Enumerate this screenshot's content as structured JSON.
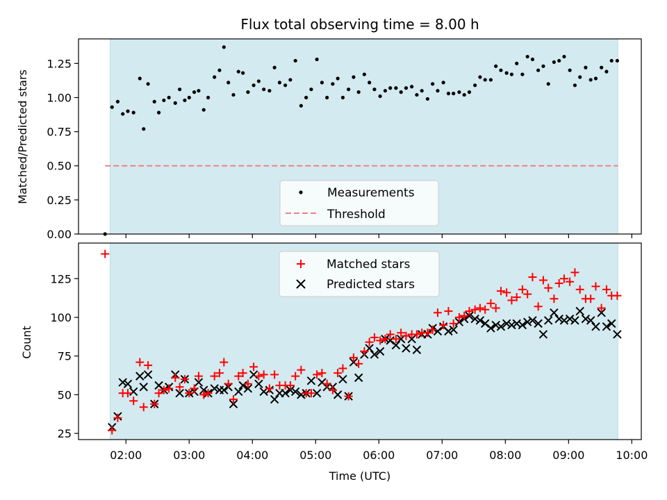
{
  "chart_data": [
    {
      "type": "scatter",
      "title": "Flux total observing time = 8.00 h",
      "xlabel": "",
      "ylabel": "Matched/Predicted stars",
      "xlim": [
        1.25,
        10.15
      ],
      "ylim": [
        0.0,
        1.43
      ],
      "yticks": [
        0.0,
        0.25,
        0.5,
        0.75,
        1.0,
        1.25
      ],
      "ytick_labels": [
        "0.00",
        "0.25",
        "0.50",
        "0.75",
        "1.00",
        "1.25"
      ],
      "xticks": [
        2,
        3,
        4,
        5,
        6,
        7,
        8,
        9,
        10
      ],
      "shaded_region": {
        "x_start": 1.75,
        "x_end": 9.78,
        "color": "#d3eaf0"
      },
      "threshold": {
        "name": "Threshold",
        "value": 0.5,
        "x_start": 1.67,
        "x_end": 9.78,
        "color": "#f08080"
      },
      "legend": {
        "position": "lower center",
        "entries": [
          "Measurements",
          "Threshold"
        ]
      },
      "series": [
        {
          "name": "Measurements",
          "marker": "dot",
          "color": "#000000",
          "x": [
            1.67,
            1.78,
            1.87,
            1.95,
            2.03,
            2.12,
            2.22,
            2.28,
            2.35,
            2.45,
            2.52,
            2.6,
            2.68,
            2.78,
            2.85,
            2.93,
            3.0,
            3.08,
            3.15,
            3.23,
            3.3,
            3.4,
            3.48,
            3.55,
            3.62,
            3.7,
            3.78,
            3.85,
            3.93,
            4.02,
            4.1,
            4.18,
            4.27,
            4.35,
            4.43,
            4.52,
            4.6,
            4.68,
            4.77,
            4.85,
            4.93,
            5.02,
            5.1,
            5.18,
            5.27,
            5.35,
            5.43,
            5.52,
            5.6,
            5.68,
            5.77,
            5.85,
            5.93,
            6.02,
            6.1,
            6.18,
            6.27,
            6.35,
            6.43,
            6.52,
            6.6,
            6.68,
            6.77,
            6.85,
            6.93,
            7.02,
            7.1,
            7.18,
            7.27,
            7.35,
            7.43,
            7.52,
            7.6,
            7.68,
            7.77,
            7.85,
            7.93,
            8.02,
            8.1,
            8.18,
            8.27,
            8.35,
            8.43,
            8.52,
            8.6,
            8.68,
            8.77,
            8.85,
            8.93,
            9.02,
            9.1,
            9.18,
            9.27,
            9.35,
            9.43,
            9.52,
            9.6,
            9.68,
            9.77
          ],
          "y": [
            0.0,
            0.93,
            0.97,
            0.88,
            0.9,
            0.89,
            1.14,
            0.77,
            1.1,
            0.97,
            0.89,
            0.98,
            1.0,
            0.96,
            1.06,
            0.98,
            1.0,
            1.04,
            1.05,
            0.91,
            1.0,
            1.15,
            1.2,
            1.37,
            1.11,
            1.02,
            1.19,
            1.18,
            1.04,
            1.09,
            1.12,
            1.06,
            1.05,
            1.22,
            1.11,
            1.09,
            1.13,
            1.27,
            0.94,
            1.0,
            1.06,
            1.28,
            1.11,
            1.0,
            1.1,
            1.14,
            1.0,
            1.06,
            1.15,
            1.04,
            1.17,
            1.11,
            1.06,
            1.01,
            1.05,
            1.07,
            1.07,
            1.04,
            1.07,
            1.08,
            1.02,
            1.05,
            0.99,
            1.1,
            1.05,
            1.11,
            1.03,
            1.03,
            1.04,
            1.02,
            1.04,
            1.09,
            1.15,
            1.13,
            1.13,
            1.23,
            1.2,
            1.18,
            1.17,
            1.25,
            1.17,
            1.3,
            1.28,
            1.2,
            1.23,
            1.1,
            1.26,
            1.27,
            1.3,
            1.2,
            1.09,
            1.15,
            1.22,
            1.13,
            1.14,
            1.22,
            1.19,
            1.27,
            1.27
          ]
        }
      ]
    },
    {
      "type": "scatter",
      "title": "",
      "xlabel": "Time (UTC)",
      "ylabel": "Count",
      "xlim": [
        1.25,
        10.15
      ],
      "ylim": [
        21,
        148
      ],
      "yticks": [
        25,
        50,
        75,
        100,
        125
      ],
      "ytick_labels": [
        "25",
        "50",
        "75",
        "100",
        "125"
      ],
      "xticks": [
        2,
        3,
        4,
        5,
        6,
        7,
        8,
        9,
        10
      ],
      "xtick_labels": [
        "02:00",
        "03:00",
        "04:00",
        "05:00",
        "06:00",
        "07:00",
        "08:00",
        "09:00",
        "10:00"
      ],
      "shaded_region": {
        "x_start": 1.75,
        "x_end": 9.78,
        "color": "#d3eaf0"
      },
      "legend": {
        "position": "upper center",
        "entries": [
          "Matched stars",
          "Predicted stars"
        ]
      },
      "series": [
        {
          "name": "Matched stars",
          "marker": "plus",
          "color": "#ff0000",
          "x": [
            1.67,
            1.78,
            1.87,
            1.95,
            2.03,
            2.12,
            2.22,
            2.28,
            2.35,
            2.45,
            2.52,
            2.6,
            2.68,
            2.78,
            2.85,
            2.93,
            3.0,
            3.08,
            3.15,
            3.23,
            3.3,
            3.4,
            3.48,
            3.55,
            3.62,
            3.7,
            3.78,
            3.85,
            3.93,
            4.02,
            4.1,
            4.18,
            4.27,
            4.35,
            4.43,
            4.52,
            4.6,
            4.68,
            4.77,
            4.85,
            4.93,
            5.02,
            5.1,
            5.18,
            5.27,
            5.35,
            5.43,
            5.52,
            5.6,
            5.68,
            5.77,
            5.85,
            5.93,
            6.02,
            6.1,
            6.18,
            6.27,
            6.35,
            6.43,
            6.52,
            6.6,
            6.68,
            6.77,
            6.85,
            6.93,
            7.02,
            7.1,
            7.18,
            7.27,
            7.35,
            7.43,
            7.52,
            7.6,
            7.68,
            7.77,
            7.85,
            7.93,
            8.02,
            8.1,
            8.18,
            8.27,
            8.35,
            8.43,
            8.52,
            8.6,
            8.68,
            8.77,
            8.85,
            8.93,
            9.02,
            9.1,
            9.18,
            9.27,
            9.35,
            9.43,
            9.52,
            9.6,
            9.68,
            9.77
          ],
          "y": [
            141,
            27,
            35,
            51,
            51,
            46,
            71,
            42,
            69,
            44,
            51,
            53,
            54,
            61,
            55,
            60,
            51,
            54,
            62,
            50,
            51,
            62,
            64,
            71,
            57,
            47,
            62,
            64,
            57,
            68,
            62,
            63,
            54,
            63,
            56,
            56,
            56,
            62,
            66,
            51,
            51,
            63,
            64,
            57,
            53,
            64,
            67,
            49,
            74,
            70,
            78,
            84,
            87,
            85,
            86,
            89,
            86,
            90,
            88,
            89,
            89,
            90,
            90,
            92,
            103,
            95,
            104,
            96,
            100,
            101,
            104,
            105,
            106,
            105,
            109,
            106,
            117,
            116,
            111,
            113,
            118,
            115,
            126,
            107,
            124,
            119,
            112,
            122,
            125,
            123,
            129,
            118,
            112,
            112,
            120,
            106,
            118,
            114,
            114
          ]
        },
        {
          "name": "Predicted stars",
          "marker": "x",
          "color": "#000000",
          "x": [
            1.78,
            1.87,
            1.95,
            2.03,
            2.12,
            2.22,
            2.28,
            2.35,
            2.45,
            2.52,
            2.6,
            2.68,
            2.78,
            2.85,
            2.93,
            3.0,
            3.08,
            3.15,
            3.23,
            3.3,
            3.4,
            3.48,
            3.55,
            3.62,
            3.7,
            3.78,
            3.85,
            3.93,
            4.02,
            4.1,
            4.18,
            4.27,
            4.35,
            4.43,
            4.52,
            4.6,
            4.68,
            4.77,
            4.85,
            4.93,
            5.02,
            5.1,
            5.18,
            5.27,
            5.35,
            5.43,
            5.52,
            5.6,
            5.68,
            5.77,
            5.85,
            5.93,
            6.02,
            6.1,
            6.18,
            6.27,
            6.35,
            6.43,
            6.52,
            6.6,
            6.68,
            6.77,
            6.85,
            6.93,
            7.02,
            7.1,
            7.18,
            7.27,
            7.35,
            7.43,
            7.52,
            7.6,
            7.68,
            7.77,
            7.85,
            7.93,
            8.02,
            8.1,
            8.18,
            8.27,
            8.35,
            8.43,
            8.52,
            8.6,
            8.68,
            8.77,
            8.85,
            8.93,
            9.02,
            9.1,
            9.18,
            9.27,
            9.35,
            9.43,
            9.52,
            9.6,
            9.68,
            9.77
          ],
          "y": [
            29,
            36,
            58,
            57,
            52,
            62,
            55,
            63,
            44,
            56,
            53,
            55,
            63,
            51,
            60,
            51,
            52,
            58,
            53,
            51,
            54,
            53,
            53,
            55,
            44,
            52,
            56,
            54,
            63,
            57,
            52,
            53,
            47,
            51,
            51,
            53,
            52,
            50,
            51,
            59,
            51,
            58,
            55,
            55,
            50,
            60,
            49,
            71,
            61,
            76,
            80,
            76,
            78,
            86,
            85,
            82,
            86,
            80,
            86,
            79,
            89,
            89,
            93,
            91,
            94,
            91,
            92,
            97,
            99,
            101,
            99,
            98,
            96,
            93,
            95,
            94,
            96,
            95,
            96,
            95,
            97,
            98,
            96,
            89,
            98,
            103,
            99,
            98,
            99,
            98,
            104,
            99,
            98,
            94,
            103,
            94,
            96,
            89
          ]
        }
      ]
    }
  ]
}
